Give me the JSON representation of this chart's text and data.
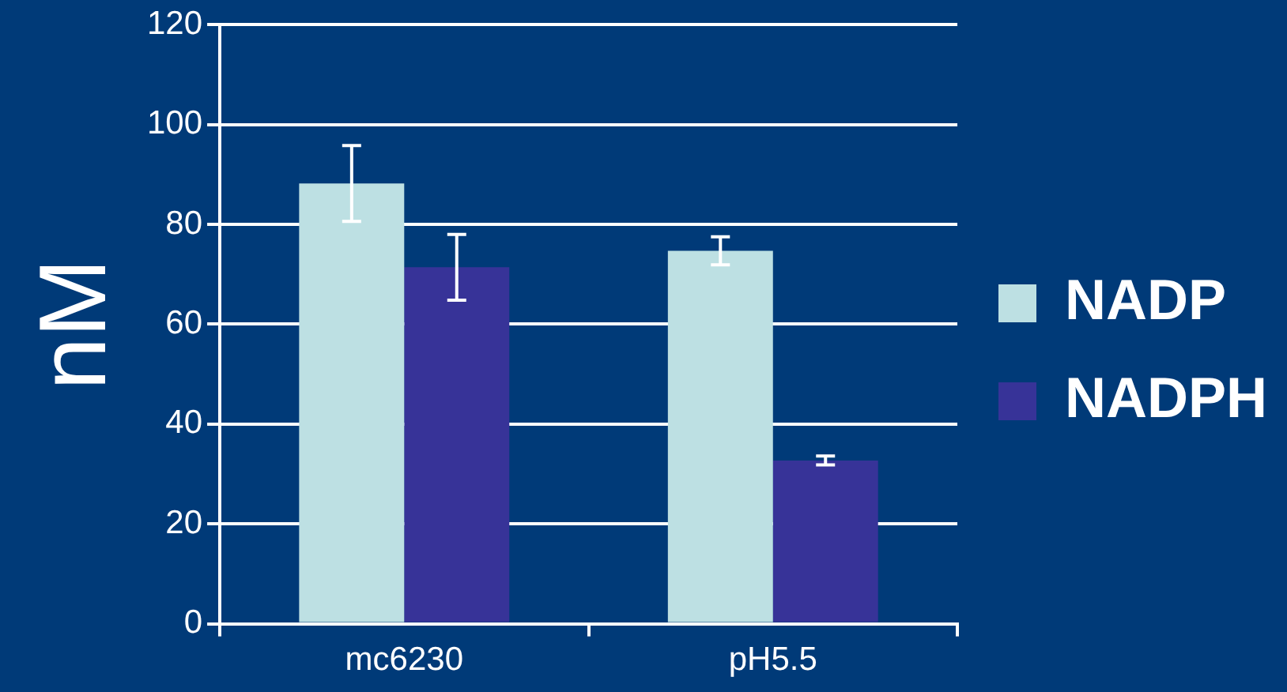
{
  "chart_data": {
    "type": "bar",
    "categories": [
      "mc6230",
      "pH5.5"
    ],
    "ylabel": "nM",
    "series": [
      {
        "name": "NADP",
        "color": "#bde0e3",
        "values": [
          88.2,
          74.7
        ],
        "errors": [
          7.6,
          2.8
        ]
      },
      {
        "name": "NADPH",
        "color": "#373398",
        "values": [
          71.4,
          32.7
        ],
        "errors": [
          6.6,
          0.9
        ]
      }
    ],
    "ylim": [
      0,
      120
    ],
    "yticks": [
      0,
      20,
      40,
      60,
      80,
      100,
      120
    ],
    "grid": "y",
    "legend": "right"
  }
}
